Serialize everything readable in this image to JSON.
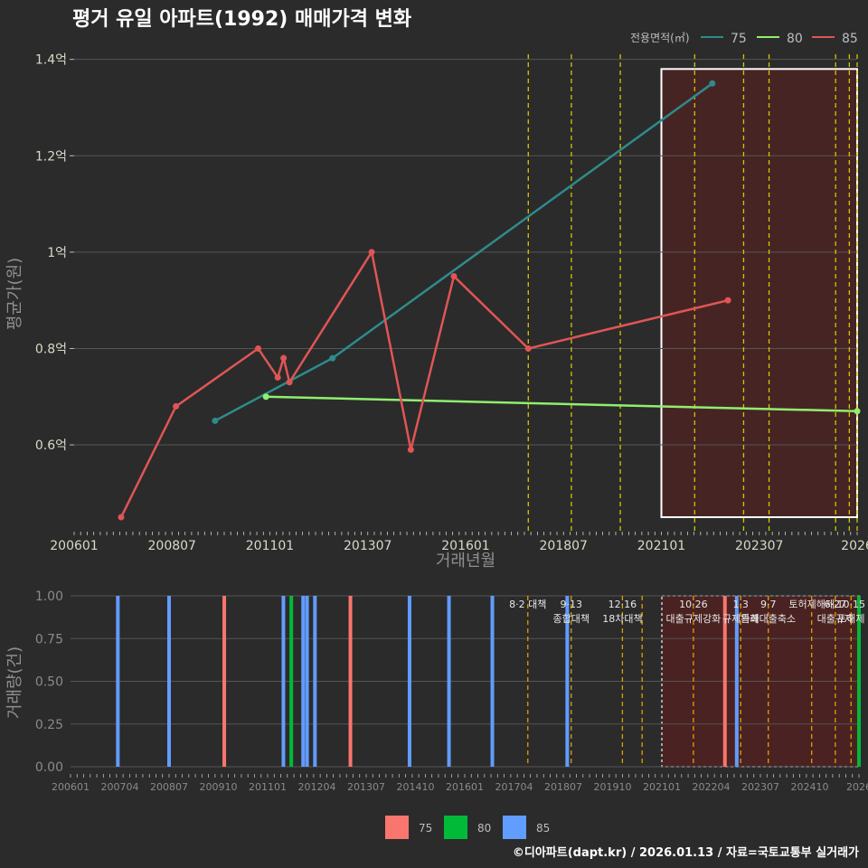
{
  "title": "평거 유일 아파트(1992) 매매가격 변화",
  "caption": "©디아파트(dapt.kr) / 2026.01.13 / 자료=국토교통부 실거래가",
  "colors": {
    "background": "#2b2b2b",
    "grid": "#555555",
    "s75": "#2e8b8b",
    "s80": "#90ee70",
    "s85": "#e05555",
    "bar75": "#f8766d",
    "bar80": "#00ba38",
    "bar85": "#619cff",
    "event": "#d4c400",
    "event_bottom": "#e0a000",
    "highlight": "#5a2020"
  },
  "chart_data": [
    {
      "type": "line",
      "name": "price",
      "legend_title": "전용면적(㎡)",
      "xlabel": "거래년월",
      "ylabel": "평균가(원)",
      "x_ticks": [
        "200601",
        "200807",
        "201101",
        "201307",
        "201601",
        "201807",
        "202101",
        "202307",
        "2026"
      ],
      "y_ticks": [
        "0.6억",
        "0.8억",
        "1억",
        "1.2억",
        "1.4억"
      ],
      "y_tick_values": [
        0.6,
        0.8,
        1.0,
        1.2,
        1.4
      ],
      "ylim": [
        0.42,
        1.42
      ],
      "series": [
        {
          "name": "75",
          "points": [
            [
              2009.6,
              0.65
            ],
            [
              2012.6,
              0.78
            ],
            [
              2022.3,
              1.35
            ]
          ]
        },
        {
          "name": "80",
          "points": [
            [
              2010.9,
              0.7
            ],
            [
              2026.0,
              0.67
            ]
          ]
        },
        {
          "name": "85",
          "points": [
            [
              2007.2,
              0.45
            ],
            [
              2008.6,
              0.68
            ],
            [
              2010.7,
              0.8
            ],
            [
              2011.2,
              0.74
            ],
            [
              2011.35,
              0.78
            ],
            [
              2011.5,
              0.73
            ],
            [
              2013.6,
              1.0
            ],
            [
              2014.6,
              0.59
            ],
            [
              2015.7,
              0.95
            ],
            [
              2017.6,
              0.8
            ],
            [
              2022.7,
              0.9
            ]
          ]
        }
      ],
      "event_lines": [
        2017.6,
        2018.7,
        2019.95,
        2021.85,
        2023.1,
        2023.75,
        2025.45,
        2025.8,
        2026.0
      ],
      "highlight_range": [
        2021.0,
        2026.0,
        0.45,
        1.38
      ]
    },
    {
      "type": "bar",
      "name": "volume",
      "xlabel": "",
      "ylabel": "거래량(건)",
      "x_ticks": [
        "200601",
        "200704",
        "200807",
        "200910",
        "201101",
        "201204",
        "201307",
        "201410",
        "201601",
        "201704",
        "201807",
        "201910",
        "202101",
        "202204",
        "202307",
        "202410",
        "2026"
      ],
      "y_ticks": [
        "0.00",
        "0.25",
        "0.50",
        "0.75",
        "1.00"
      ],
      "y_tick_values": [
        0,
        0.25,
        0.5,
        0.75,
        1.0
      ],
      "ylim": [
        0,
        1.0
      ],
      "legend": [
        "75",
        "80",
        "85"
      ],
      "bars": [
        {
          "x": 2007.2,
          "series": "85",
          "value": 1
        },
        {
          "x": 2008.5,
          "series": "85",
          "value": 1
        },
        {
          "x": 2009.9,
          "series": "75",
          "value": 1
        },
        {
          "x": 2011.4,
          "series": "85",
          "value": 1
        },
        {
          "x": 2011.6,
          "series": "80",
          "value": 1
        },
        {
          "x": 2011.9,
          "series": "85",
          "value": 1
        },
        {
          "x": 2012.0,
          "series": "85",
          "value": 1
        },
        {
          "x": 2012.2,
          "series": "85",
          "value": 1
        },
        {
          "x": 2013.1,
          "series": "75",
          "value": 1
        },
        {
          "x": 2014.6,
          "series": "85",
          "value": 1
        },
        {
          "x": 2015.6,
          "series": "85",
          "value": 1
        },
        {
          "x": 2016.7,
          "series": "85",
          "value": 1
        },
        {
          "x": 2018.6,
          "series": "85",
          "value": 1
        },
        {
          "x": 2022.6,
          "series": "75",
          "value": 1
        },
        {
          "x": 2022.9,
          "series": "85",
          "value": 1
        },
        {
          "x": 2026.0,
          "series": "80",
          "value": 1
        }
      ],
      "events": [
        {
          "x": 2017.6,
          "label": "8·2 대책"
        },
        {
          "x": 2018.7,
          "label": "9·13"
        },
        {
          "x": 2018.7,
          "label": "종합대책"
        },
        {
          "x": 2020.0,
          "label": "12·16"
        },
        {
          "x": 2020.0,
          "label": "18차대책"
        },
        {
          "x": 2020.5,
          "label": ""
        },
        {
          "x": 2021.8,
          "label": "10·26"
        },
        {
          "x": 2021.8,
          "label": "대출규제강화"
        },
        {
          "x": 2023.0,
          "label": "1·3"
        },
        {
          "x": 2023.0,
          "label": "규제완화"
        },
        {
          "x": 2023.7,
          "label": "9·7"
        },
        {
          "x": 2023.7,
          "label": "특례대출축소"
        },
        {
          "x": 2024.8,
          "label": "토허제해제"
        },
        {
          "x": 2025.4,
          "label": "6·27"
        },
        {
          "x": 2025.4,
          "label": "대출규제"
        },
        {
          "x": 2025.8,
          "label": "10·15"
        },
        {
          "x": 2025.8,
          "label": "토허제"
        }
      ],
      "highlight_range": [
        2021.0,
        2026.0
      ]
    }
  ]
}
